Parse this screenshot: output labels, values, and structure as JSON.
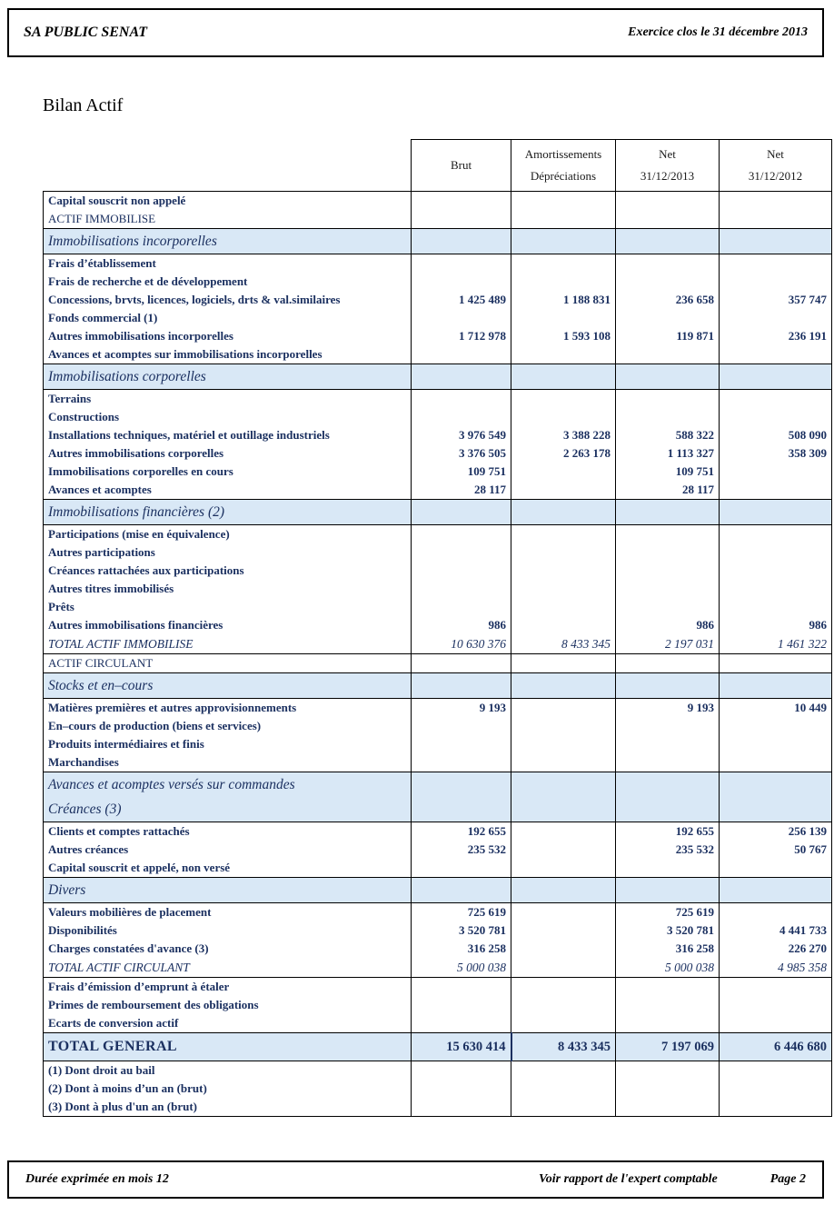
{
  "header": {
    "company": "SA PUBLIC SENAT",
    "exercise": "Exercice clos le 31 décembre 2013"
  },
  "title": "Bilan Actif",
  "colors": {
    "text_navy": "#1b3060",
    "section_bg": "#d9e8f6"
  },
  "table": {
    "columns": [
      {
        "line1": "Brut",
        "line2": ""
      },
      {
        "line1": "Amortissements",
        "line2": "Dépréciations"
      },
      {
        "line1": "Net",
        "line2": "31/12/2013"
      },
      {
        "line1": "Net",
        "line2": "31/12/2012"
      }
    ],
    "rows": [
      {
        "label": "Capital souscrit non appelé",
        "brut": "",
        "amort": "",
        "n13": "",
        "n12": "",
        "type": "normal",
        "rule": true
      },
      {
        "label": "ACTIF IMMOBILISE",
        "brut": "",
        "amort": "",
        "n13": "",
        "n12": "",
        "type": "caps",
        "rule": false
      },
      {
        "label": "Immobilisations incorporelles",
        "brut": "",
        "amort": "",
        "n13": "",
        "n12": "",
        "type": "section",
        "rule": true
      },
      {
        "label": "Frais d’établissement",
        "brut": "",
        "amort": "",
        "n13": "",
        "n12": "",
        "type": "normal",
        "rule": true
      },
      {
        "label": "Frais de recherche et de développement",
        "brut": "",
        "amort": "",
        "n13": "",
        "n12": "",
        "type": "normal",
        "rule": false
      },
      {
        "label": "Concessions, brvts, licences, logiciels, drts & val.similaires",
        "brut": "1 425 489",
        "amort": "1 188 831",
        "n13": "236 658",
        "n12": "357 747",
        "type": "normal",
        "rule": false
      },
      {
        "label": "Fonds commercial (1)",
        "brut": "",
        "amort": "",
        "n13": "",
        "n12": "",
        "type": "normal",
        "rule": false
      },
      {
        "label": "Autres immobilisations incorporelles",
        "brut": "1 712 978",
        "amort": "1 593 108",
        "n13": "119 871",
        "n12": "236 191",
        "type": "normal",
        "rule": false
      },
      {
        "label": "Avances et acomptes sur immobilisations incorporelles",
        "brut": "",
        "amort": "",
        "n13": "",
        "n12": "",
        "type": "normal",
        "rule": false
      },
      {
        "label": "Immobilisations corporelles",
        "brut": "",
        "amort": "",
        "n13": "",
        "n12": "",
        "type": "section",
        "rule": true
      },
      {
        "label": "Terrains",
        "brut": "",
        "amort": "",
        "n13": "",
        "n12": "",
        "type": "normal",
        "rule": true
      },
      {
        "label": "Constructions",
        "brut": "",
        "amort": "",
        "n13": "",
        "n12": "",
        "type": "normal",
        "rule": false
      },
      {
        "label": "Installations techniques, matériel et outillage industriels",
        "brut": "3 976 549",
        "amort": "3 388 228",
        "n13": "588 322",
        "n12": "508 090",
        "type": "normal",
        "rule": false
      },
      {
        "label": "Autres immobilisations corporelles",
        "brut": "3 376 505",
        "amort": "2 263 178",
        "n13": "1 113 327",
        "n12": "358 309",
        "type": "normal",
        "rule": false
      },
      {
        "label": "Immobilisations corporelles en cours",
        "brut": "109 751",
        "amort": "",
        "n13": "109 751",
        "n12": "",
        "type": "normal",
        "rule": false
      },
      {
        "label": "Avances et acomptes",
        "brut": "28 117",
        "amort": "",
        "n13": "28 117",
        "n12": "",
        "type": "normal",
        "rule": false
      },
      {
        "label": "Immobilisations financières (2)",
        "brut": "",
        "amort": "",
        "n13": "",
        "n12": "",
        "type": "section",
        "rule": true
      },
      {
        "label": "Participations (mise en équivalence)",
        "brut": "",
        "amort": "",
        "n13": "",
        "n12": "",
        "type": "normal",
        "rule": true
      },
      {
        "label": "Autres participations",
        "brut": "",
        "amort": "",
        "n13": "",
        "n12": "",
        "type": "normal",
        "rule": false
      },
      {
        "label": "Créances rattachées aux participations",
        "brut": "",
        "amort": "",
        "n13": "",
        "n12": "",
        "type": "normal",
        "rule": false
      },
      {
        "label": "Autres titres immobilisés",
        "brut": "",
        "amort": "",
        "n13": "",
        "n12": "",
        "type": "normal",
        "rule": false
      },
      {
        "label": "Prêts",
        "brut": "",
        "amort": "",
        "n13": "",
        "n12": "",
        "type": "normal",
        "rule": false
      },
      {
        "label": "Autres immobilisations financières",
        "brut": "986",
        "amort": "",
        "n13": "986",
        "n12": "986",
        "type": "normal",
        "rule": false
      },
      {
        "label": "TOTAL ACTIF IMMOBILISE",
        "brut": "10 630 376",
        "amort": "8 433 345",
        "n13": "2 197 031",
        "n12": "1 461 322",
        "type": "total",
        "rule": false
      },
      {
        "label": "ACTIF CIRCULANT",
        "brut": "",
        "amort": "",
        "n13": "",
        "n12": "",
        "type": "caps",
        "rule": true
      },
      {
        "label": "Stocks et en–cours",
        "brut": "",
        "amort": "",
        "n13": "",
        "n12": "",
        "type": "section",
        "rule": true
      },
      {
        "label": "Matières premières et autres approvisionnements",
        "brut": "9 193",
        "amort": "",
        "n13": "9 193",
        "n12": "10 449",
        "type": "normal",
        "rule": true
      },
      {
        "label": "En–cours de production (biens et services)",
        "brut": "",
        "amort": "",
        "n13": "",
        "n12": "",
        "type": "normal",
        "rule": false
      },
      {
        "label": "Produits intermédiaires et finis",
        "brut": "",
        "amort": "",
        "n13": "",
        "n12": "",
        "type": "normal",
        "rule": false
      },
      {
        "label": "Marchandises",
        "brut": "",
        "amort": "",
        "n13": "",
        "n12": "",
        "type": "normal",
        "rule": false
      },
      {
        "label": "Avances et acomptes versés sur commandes",
        "brut": "",
        "amort": "",
        "n13": "",
        "n12": "",
        "type": "section",
        "rule": true
      },
      {
        "label": "Créances (3)",
        "brut": "",
        "amort": "",
        "n13": "",
        "n12": "",
        "type": "section",
        "rule": false
      },
      {
        "label": "Clients et comptes rattachés",
        "brut": "192 655",
        "amort": "",
        "n13": "192 655",
        "n12": "256 139",
        "type": "normal",
        "rule": true
      },
      {
        "label": "Autres créances",
        "brut": "235 532",
        "amort": "",
        "n13": "235 532",
        "n12": "50 767",
        "type": "normal",
        "rule": false
      },
      {
        "label": "Capital souscrit et appelé, non versé",
        "brut": "",
        "amort": "",
        "n13": "",
        "n12": "",
        "type": "normal",
        "rule": false
      },
      {
        "label": "Divers",
        "brut": "",
        "amort": "",
        "n13": "",
        "n12": "",
        "type": "section",
        "rule": true
      },
      {
        "label": "Valeurs mobilières de placement",
        "brut": "725 619",
        "amort": "",
        "n13": "725 619",
        "n12": "",
        "type": "normal",
        "rule": true
      },
      {
        "label": "Disponibilités",
        "brut": "3 520 781",
        "amort": "",
        "n13": "3 520 781",
        "n12": "4 441 733",
        "type": "normal",
        "rule": false
      },
      {
        "label": "Charges constatées d'avance (3)",
        "brut": "316 258",
        "amort": "",
        "n13": "316 258",
        "n12": "226 270",
        "type": "normal",
        "rule": false
      },
      {
        "label": "TOTAL ACTIF CIRCULANT",
        "brut": "5 000 038",
        "amort": "",
        "n13": "5 000 038",
        "n12": "4 985 358",
        "type": "total",
        "rule": false
      },
      {
        "label": "Frais d’émission d’emprunt à étaler",
        "brut": "",
        "amort": "",
        "n13": "",
        "n12": "",
        "type": "normal",
        "rule": true
      },
      {
        "label": "Primes de remboursement des obligations",
        "brut": "",
        "amort": "",
        "n13": "",
        "n12": "",
        "type": "normal",
        "rule": false
      },
      {
        "label": "Ecarts de conversion actif",
        "brut": "",
        "amort": "",
        "n13": "",
        "n12": "",
        "type": "normal",
        "rule": false
      },
      {
        "label": "TOTAL GENERAL",
        "brut": "15 630 414",
        "amort": "8 433 345",
        "n13": "7 197 069",
        "n12": "6 446 680",
        "type": "grand",
        "rule": true
      },
      {
        "label": "(1) Dont droit au bail",
        "brut": "",
        "amort": "",
        "n13": "",
        "n12": "",
        "type": "normal",
        "rule": true
      },
      {
        "label": "(2) Dont à moins d’un an (brut)",
        "brut": "",
        "amort": "",
        "n13": "",
        "n12": "",
        "type": "normal",
        "rule": false
      },
      {
        "label": "(3) Dont à plus d'un an (brut)",
        "brut": "",
        "amort": "",
        "n13": "",
        "n12": "",
        "type": "normal",
        "rule": false
      }
    ]
  },
  "footer": {
    "left": "Durée exprimée en mois 12",
    "center": "Voir rapport de l'expert comptable",
    "right": "Page 2"
  }
}
